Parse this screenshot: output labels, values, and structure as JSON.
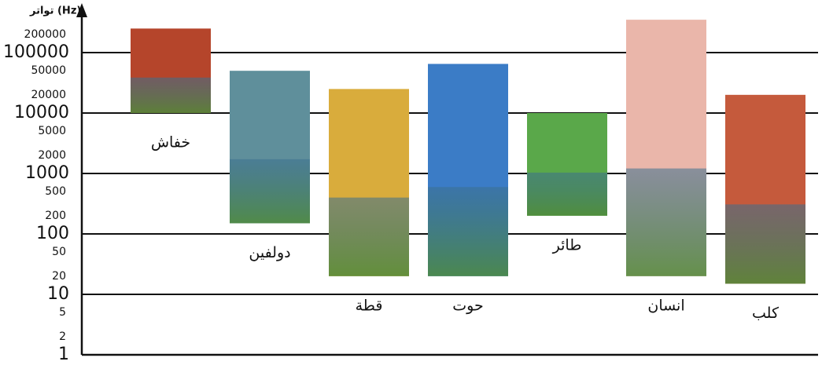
{
  "chart_data": {
    "type": "range-bar",
    "y_label": "تواتر (Hz)",
    "log": true,
    "ylim": [
      1,
      550000
    ],
    "yticks": [
      1,
      10,
      100,
      1000,
      10000,
      100000
    ],
    "minor_yticks": [
      2,
      5,
      20,
      50,
      200,
      500,
      2000,
      5000,
      20000,
      50000,
      200000
    ],
    "grid": true,
    "categories": [
      "خفاش",
      "دولفين",
      "قطة",
      "حوت",
      "طائر",
      "انسان",
      "كلب"
    ],
    "low": [
      10000,
      150,
      20,
      20,
      200,
      20,
      15
    ],
    "high": [
      250000,
      50000,
      25000,
      65000,
      10000,
      350000,
      20000
    ],
    "colors": [
      "#b5452b",
      "#5f8f9b",
      "#d9ac3c",
      "#3b7cc6",
      "#5aa84a",
      "#eab6aa",
      "#c55a3c"
    ]
  }
}
